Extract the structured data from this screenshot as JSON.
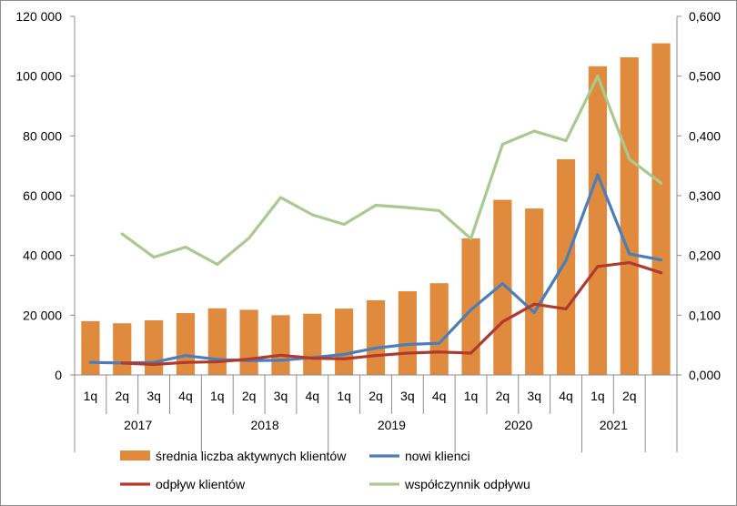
{
  "chart_data": {
    "type": "bar+line",
    "categories": [
      "1q",
      "2q",
      "3q",
      "4q",
      "1q",
      "2q",
      "3q",
      "4q",
      "1q",
      "2q",
      "3q",
      "4q",
      "1q",
      "2q",
      "3q",
      "4q",
      "1q",
      "2q",
      ""
    ],
    "years": [
      {
        "label": "2017",
        "start": 0,
        "count": 4
      },
      {
        "label": "2018",
        "start": 4,
        "count": 4
      },
      {
        "label": "2019",
        "start": 8,
        "count": 4
      },
      {
        "label": "2020",
        "start": 12,
        "count": 4
      },
      {
        "label": "2021",
        "start": 16,
        "count": 2
      }
    ],
    "y_left": {
      "range": [
        0,
        120000
      ],
      "ticks": [
        0,
        20000,
        40000,
        60000,
        80000,
        100000,
        120000
      ],
      "tick_labels": [
        "0",
        "20 000",
        "40 000",
        "60 000",
        "80 000",
        "100 000",
        "120 000"
      ]
    },
    "y_right": {
      "range": [
        0,
        0.6
      ],
      "ticks": [
        0,
        0.1,
        0.2,
        0.3,
        0.4,
        0.5,
        0.6
      ],
      "tick_labels": [
        "0,000",
        "0,100",
        "0,200",
        "0,300",
        "0,400",
        "0,500",
        "0,600"
      ]
    },
    "series": [
      {
        "name": "średnia liczba aktywnych klientów",
        "kind": "bar",
        "axis": "left",
        "color": "#E08A3E",
        "values": [
          18000,
          17300,
          18300,
          20700,
          22300,
          21800,
          20000,
          20500,
          22200,
          25000,
          28000,
          30700,
          45700,
          58600,
          55700,
          72200,
          103300,
          106300,
          111000
        ]
      },
      {
        "name": "nowi klienci",
        "kind": "line",
        "axis": "left",
        "color": "#4A7EBB",
        "values": [
          4200,
          4000,
          4200,
          6500,
          5200,
          4800,
          4900,
          5800,
          6900,
          9000,
          10200,
          10600,
          21800,
          30600,
          20900,
          38300,
          67000,
          40500,
          38500
        ]
      },
      {
        "name": "odpływ klientów",
        "kind": "line",
        "axis": "left",
        "color": "#B03A2E",
        "values": [
          null,
          4000,
          3500,
          4200,
          4400,
          5300,
          6600,
          5600,
          5400,
          6500,
          7300,
          7700,
          7300,
          17800,
          23700,
          22100,
          36300,
          37600,
          34200
        ]
      },
      {
        "name": "współczynnik odpływu",
        "kind": "line",
        "axis": "right",
        "color": "#A9C98F",
        "values": [
          null,
          0.236,
          0.197,
          0.214,
          0.185,
          0.229,
          0.297,
          0.268,
          0.252,
          0.284,
          0.28,
          0.275,
          0.228,
          0.386,
          0.408,
          0.392,
          0.5,
          0.361,
          0.321
        ]
      }
    ],
    "legend": [
      {
        "label": "średnia liczba aktywnych klientów",
        "symbol": "bar",
        "color": "#E08A3E"
      },
      {
        "label": "nowi klienci",
        "symbol": "line",
        "color": "#4A7EBB"
      },
      {
        "label": "odpływ klientów",
        "symbol": "line",
        "color": "#B03A2E"
      },
      {
        "label": "współczynnik odpływu",
        "symbol": "line",
        "color": "#A9C98F"
      }
    ],
    "legend_position": "bottom",
    "grid": false,
    "title": "",
    "xlabel": "",
    "ylabel": ""
  }
}
